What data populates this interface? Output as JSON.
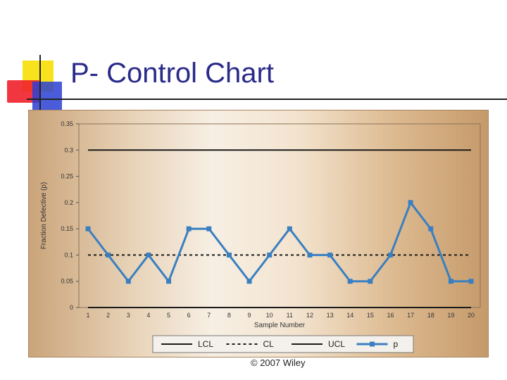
{
  "slide": {
    "title": "P- Control Chart",
    "copyright": "© 2007 Wiley"
  },
  "chart_data": {
    "type": "line",
    "title": "",
    "xlabel": "Sample Number",
    "ylabel": "Fraction Defective (p)",
    "x": [
      1,
      2,
      3,
      4,
      5,
      6,
      7,
      8,
      9,
      10,
      11,
      12,
      13,
      14,
      15,
      16,
      17,
      18,
      19,
      20
    ],
    "y_ticks": [
      "0",
      "0.05",
      "0.1",
      "0.15",
      "0.2",
      "0.25",
      "0.3",
      "0.35"
    ],
    "ylim": [
      0,
      0.35
    ],
    "grid": false,
    "legend_position": "bottom",
    "series": [
      {
        "name": "LCL",
        "style": "solid",
        "color": "#1a1a1a",
        "values": [
          0,
          0,
          0,
          0,
          0,
          0,
          0,
          0,
          0,
          0,
          0,
          0,
          0,
          0,
          0,
          0,
          0,
          0,
          0,
          0
        ]
      },
      {
        "name": "CL",
        "style": "dashed",
        "color": "#1a1a1a",
        "values": [
          0.1,
          0.1,
          0.1,
          0.1,
          0.1,
          0.1,
          0.1,
          0.1,
          0.1,
          0.1,
          0.1,
          0.1,
          0.1,
          0.1,
          0.1,
          0.1,
          0.1,
          0.1,
          0.1,
          0.1
        ]
      },
      {
        "name": "UCL",
        "style": "solid",
        "color": "#1a1a1a",
        "values": [
          0.3,
          0.3,
          0.3,
          0.3,
          0.3,
          0.3,
          0.3,
          0.3,
          0.3,
          0.3,
          0.3,
          0.3,
          0.3,
          0.3,
          0.3,
          0.3,
          0.3,
          0.3,
          0.3,
          0.3
        ]
      },
      {
        "name": "p",
        "style": "markers",
        "color": "#3a7fc1",
        "values": [
          0.15,
          0.1,
          0.05,
          0.1,
          0.05,
          0.15,
          0.15,
          0.1,
          0.05,
          0.1,
          0.15,
          0.1,
          0.1,
          0.05,
          0.05,
          0.1,
          0.2,
          0.15,
          0.05,
          0.05
        ]
      }
    ]
  }
}
